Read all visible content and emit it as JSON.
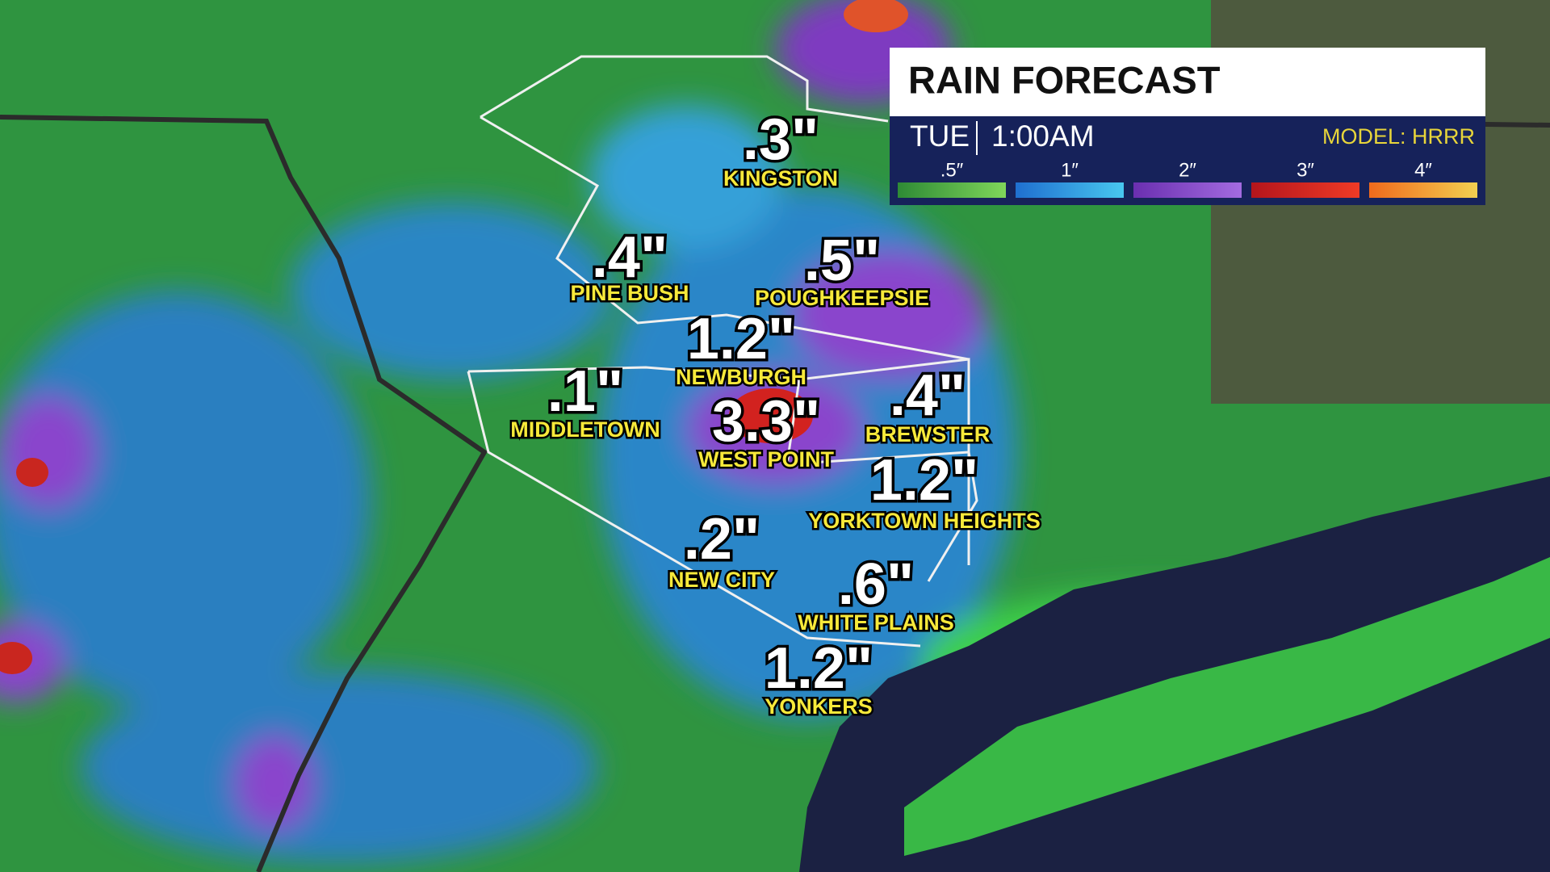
{
  "header": {
    "title": "RAIN FORECAST",
    "day": "TUE",
    "time": "1:00AM",
    "model": "MODEL: HRRR"
  },
  "legend": [
    ".5″",
    "1″",
    "2″",
    "3″",
    "4″"
  ],
  "cities": [
    {
      "amount": ".3\"",
      "name": "KINGSTON"
    },
    {
      "amount": ".4\"",
      "name": "PINE BUSH"
    },
    {
      "amount": ".5\"",
      "name": "POUGHKEEPSIE"
    },
    {
      "amount": "1.2\"",
      "name": "NEWBURGH"
    },
    {
      "amount": ".1\"",
      "name": "MIDDLETOWN"
    },
    {
      "amount": "3.3\"",
      "name": "WEST POINT"
    },
    {
      "amount": ".4\"",
      "name": "BREWSTER"
    },
    {
      "amount": "1.2\"",
      "name": "YORKTOWN HEIGHTS"
    },
    {
      "amount": ".2\"",
      "name": "NEW CITY"
    },
    {
      "amount": ".6\"",
      "name": "WHITE PLAINS"
    },
    {
      "amount": "1.2\"",
      "name": "YONKERS"
    }
  ]
}
